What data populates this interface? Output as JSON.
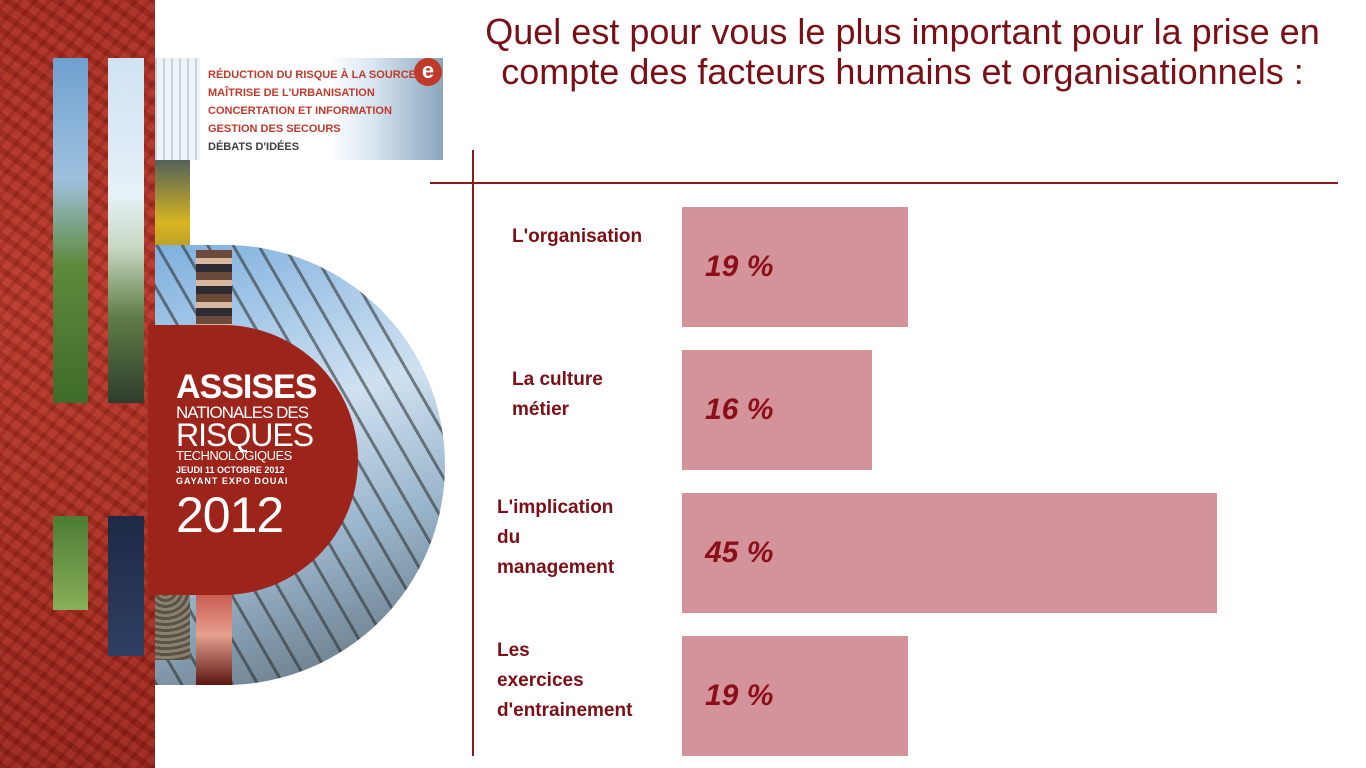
{
  "title": "Quel est pour vous le plus important pour la prise en compte des facteurs humains et organisationnels :",
  "poster": {
    "themes": [
      "RÉDUCTION DU RISQUE À LA SOURCE",
      "MAÎTRISE DE L'URBANISATION",
      "CONCERTATION ET INFORMATION",
      "GESTION DES SECOURS",
      "DÉBATS D'IDÉES"
    ],
    "badge": "e",
    "logo": {
      "line1": "ASSISES",
      "line2": "NATIONALES DES",
      "line3": "RISQUES",
      "line4": "TECHNOLOGIQUES",
      "date": "JEUDI 11 OCTOBRE 2012",
      "venue": "GAYANT EXPO DOUAI",
      "year": "2012"
    }
  },
  "chart_data": {
    "type": "bar",
    "orientation": "horizontal",
    "title": "Quel est pour vous le plus important pour la prise en compte des facteurs humains et organisationnels :",
    "categories": [
      "L'organisation",
      "La culture métier",
      "L'implication du management",
      "Les exercices d'entrainement"
    ],
    "values": [
      19,
      16,
      45,
      19
    ],
    "value_labels": [
      "19 %",
      "16 %",
      "45 %",
      "19 %"
    ],
    "unit": "%",
    "bar_color": "#d4939a",
    "label_color": "#7a0f16",
    "grid": false
  },
  "labels": {
    "bar1": [
      "L'organisation"
    ],
    "bar2": [
      "La culture",
      "métier"
    ],
    "bar3": [
      "L'implication",
      "du",
      "management"
    ],
    "bar4": [
      "Les",
      "exercices",
      "d'entrainement"
    ]
  }
}
